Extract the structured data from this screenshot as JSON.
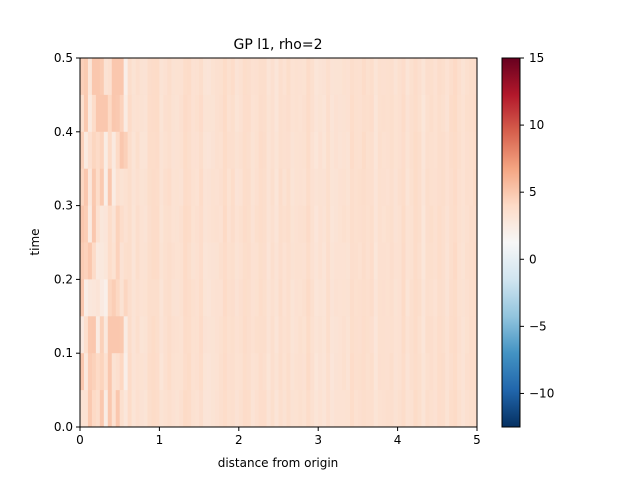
{
  "chart_data": {
    "type": "heatmap",
    "title": "GP l1, rho=2",
    "xlabel": "distance from origin",
    "ylabel": "time",
    "xlim": [
      0,
      5
    ],
    "ylim": [
      0,
      0.5
    ],
    "x_ticks": [
      0,
      1,
      2,
      3,
      4,
      5
    ],
    "x_tick_labels": [
      "0",
      "1",
      "2",
      "3",
      "4",
      "5"
    ],
    "y_ticks": [
      0.0,
      0.1,
      0.2,
      0.3,
      0.4,
      0.5
    ],
    "y_tick_labels": [
      "0.0",
      "0.1",
      "0.2",
      "0.3",
      "0.4",
      "0.5"
    ],
    "n_x_cells": 100,
    "n_time_rows": 10,
    "colormap": "RdBu_r",
    "colorbar": {
      "vmin": -12.5,
      "vmax": 15,
      "ticks": [
        -10,
        -5,
        0,
        5,
        10,
        15
      ],
      "tick_labels": [
        "−10",
        "−5",
        "0",
        "5",
        "10",
        "15"
      ]
    },
    "value_summary": {
      "typical_value": 3.5,
      "min_value": 1.0,
      "max_value": 5.0,
      "description": "Nearly uniform field around 3-4 with column-wise vertical striping; slightly more variable and lighter values near distance < 0.6."
    },
    "grid": false,
    "legend": "colorbar-right"
  }
}
